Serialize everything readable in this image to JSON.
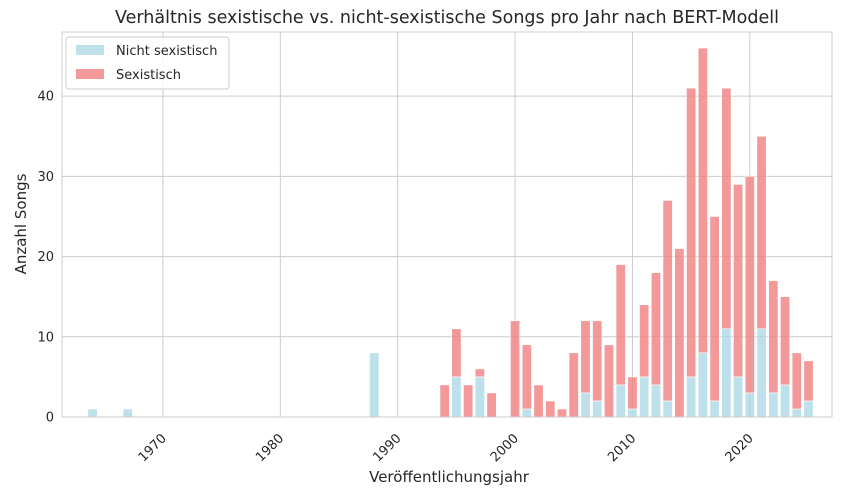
{
  "chart_data": {
    "type": "bar",
    "stacked": true,
    "title": "Verhältnis sexistische vs. nicht-sexistische Songs pro Jahr nach BERT-Modell",
    "xlabel": "Veröffentlichungsjahr",
    "ylabel": "Anzahl Songs",
    "xlim": [
      1961.4,
      1827.0
    ],
    "ylim": [
      0,
      48
    ],
    "x_ticks": [
      1970,
      1980,
      1990,
      2000,
      2010,
      2020
    ],
    "y_ticks": [
      0,
      10,
      20,
      30,
      40
    ],
    "grid": true,
    "legend_position": "top-left",
    "x": [
      1964,
      1967,
      1988,
      1994,
      1995,
      1996,
      1997,
      1998,
      2000,
      2001,
      2002,
      2003,
      2004,
      2005,
      2006,
      2007,
      2008,
      2009,
      2010,
      2011,
      2012,
      2013,
      2014,
      2015,
      2016,
      2017,
      2018,
      2019,
      2020,
      2021,
      2022,
      2023,
      2024,
      2025
    ],
    "series": [
      {
        "name": "Nicht sexistisch",
        "color": "#add8e6",
        "values": [
          1,
          1,
          8,
          0,
          5,
          0,
          5,
          0,
          0,
          1,
          0,
          0,
          0,
          0,
          3,
          2,
          0,
          4,
          1,
          5,
          4,
          2,
          0,
          5,
          8,
          2,
          11,
          5,
          3,
          11,
          3,
          4,
          1,
          2
        ]
      },
      {
        "name": "Sexistisch",
        "color": "#f08080",
        "values": [
          0,
          0,
          0,
          4,
          6,
          4,
          1,
          3,
          12,
          8,
          4,
          2,
          1,
          8,
          9,
          10,
          9,
          15,
          4,
          9,
          14,
          25,
          21,
          36,
          38,
          23,
          30,
          24,
          27,
          24,
          14,
          11,
          7,
          5
        ]
      }
    ]
  }
}
